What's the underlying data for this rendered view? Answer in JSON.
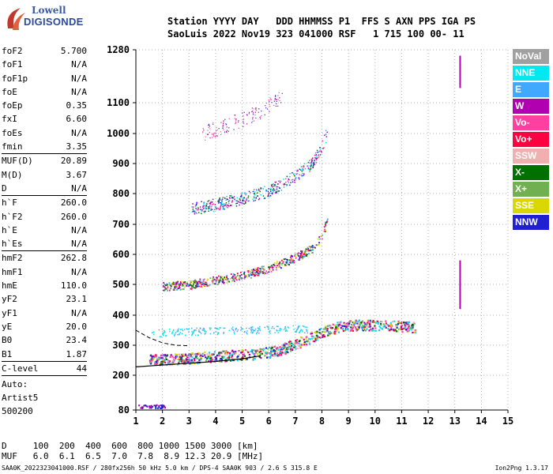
{
  "logo": {
    "line1": "Lowell",
    "line2": "DIGISONDE"
  },
  "header": {
    "line1": "Station YYYY DAY   DDD HHMMSS P1  FFS S AXN PPS IGA PS",
    "line2": "SaoLuis 2022 Nov19 323 041000 RSF   1 715 100 00- 11"
  },
  "params": [
    {
      "label": "foF2",
      "value": "5.700"
    },
    {
      "label": "foF1",
      "value": "N/A"
    },
    {
      "label": "foF1p",
      "value": "N/A"
    },
    {
      "label": "foE",
      "value": "N/A"
    },
    {
      "label": "foEp",
      "value": "0.35"
    },
    {
      "label": "fxI",
      "value": "6.60"
    },
    {
      "label": "foEs",
      "value": "N/A"
    },
    {
      "label": "fmin",
      "value": "3.35",
      "sep": true
    },
    {
      "label": "MUF(D)",
      "value": "20.89"
    },
    {
      "label": "M(D)",
      "value": "3.67"
    },
    {
      "label": "D",
      "value": "N/A",
      "sep": true
    },
    {
      "label": "h`F",
      "value": "260.0"
    },
    {
      "label": "h`F2",
      "value": "260.0"
    },
    {
      "label": "h`E",
      "value": "N/A"
    },
    {
      "label": "h`Es",
      "value": "N/A",
      "sep": true
    },
    {
      "label": "hmF2",
      "value": "262.8"
    },
    {
      "label": "hmF1",
      "value": "N/A"
    },
    {
      "label": "hmE",
      "value": "110.0"
    },
    {
      "label": "yF2",
      "value": "23.1"
    },
    {
      "label": "yF1",
      "value": "N/A"
    },
    {
      "label": "yE",
      "value": "20.0"
    },
    {
      "label": "B0",
      "value": "23.4"
    },
    {
      "label": "B1",
      "value": "1.87",
      "sep": true
    },
    {
      "label": "C-level",
      "value": "44",
      "sep": true
    }
  ],
  "auto": {
    "line1": "Auto:",
    "line2": "Artist5",
    "line3": "500200"
  },
  "dmuf": {
    "d_row": "D     100  200  400  600  800 1000 1500 3000 [km]",
    "muf_row": "MUF   6.0  6.1  6.5  7.0  7.8  8.9 12.3 20.9 [MHz]"
  },
  "footer": "SAA0K_2022323041000.RSF / 280fx256h 50 kHz 5.0 km / DPS-4 SAA0K 903 / 2.6 S 315.8 E",
  "footer_right": "Ion2Png 1.3.17",
  "legend": [
    {
      "label": "NoVal",
      "color": "#a0a0a0"
    },
    {
      "label": "NNE",
      "color": "#00e8f0"
    },
    {
      "label": "E",
      "color": "#40a8ff"
    },
    {
      "label": "W",
      "color": "#b000b0"
    },
    {
      "label": "Vo-",
      "color": "#ff40a0"
    },
    {
      "label": "Vo+",
      "color": "#ff0040"
    },
    {
      "label": "SSW",
      "color": "#f0b0b0"
    },
    {
      "label": "X-",
      "color": "#007000"
    },
    {
      "label": "X+",
      "color": "#70b050"
    },
    {
      "label": "SSE",
      "color": "#d8d800"
    },
    {
      "label": "NNW",
      "color": "#2020d0"
    }
  ],
  "chart_data": {
    "type": "scatter",
    "xlabel": "",
    "ylabel": "",
    "xlim": [
      1,
      15
    ],
    "ylim": [
      80,
      1280
    ],
    "x_ticks": [
      1,
      2,
      3,
      4,
      5,
      6,
      7,
      8,
      9,
      10,
      11,
      12,
      13,
      14,
      15
    ],
    "y_ticks": [
      80,
      200,
      300,
      400,
      500,
      600,
      700,
      800,
      900,
      1000,
      1100,
      1280
    ],
    "grid": true,
    "traces": [
      {
        "name": "F2 O-trace",
        "points": [
          [
            1.5,
            252
          ],
          [
            2.5,
            256
          ],
          [
            3.5,
            262
          ],
          [
            4.5,
            268
          ],
          [
            5.5,
            272
          ],
          [
            6.0,
            278
          ],
          [
            6.5,
            288
          ],
          [
            7.0,
            305
          ],
          [
            7.5,
            325
          ],
          [
            8.0,
            345
          ],
          [
            8.5,
            360
          ],
          [
            9.0,
            368
          ],
          [
            10.0,
            368
          ],
          [
            11.0,
            365
          ],
          [
            11.5,
            362
          ]
        ]
      },
      {
        "name": "2nd hop",
        "points": [
          [
            2,
            495
          ],
          [
            3,
            500
          ],
          [
            4,
            515
          ],
          [
            5,
            530
          ],
          [
            6,
            555
          ],
          [
            7,
            590
          ],
          [
            7.6,
            620
          ],
          [
            8.0,
            660
          ],
          [
            8.2,
            720
          ]
        ]
      },
      {
        "name": "3rd hop",
        "points": [
          [
            3,
            750
          ],
          [
            4,
            765
          ],
          [
            5,
            785
          ],
          [
            6,
            810
          ],
          [
            7,
            860
          ],
          [
            7.6,
            900
          ],
          [
            8.0,
            960
          ],
          [
            8.2,
            1010
          ]
        ]
      },
      {
        "name": "4th hop",
        "points": [
          [
            3.5,
            1000
          ],
          [
            4.5,
            1030
          ],
          [
            5.5,
            1065
          ],
          [
            6.5,
            1120
          ]
        ]
      },
      {
        "name": "Es",
        "points": [
          [
            1.5,
            340
          ],
          [
            2.5,
            345
          ],
          [
            3.5,
            348
          ],
          [
            4.5,
            350
          ],
          [
            5.5,
            352
          ],
          [
            6.5,
            355
          ],
          [
            7.5,
            355
          ]
        ]
      }
    ],
    "model_profile": [
      [
        1.0,
        228
      ],
      [
        2.0,
        234
      ],
      [
        3.0,
        240
      ],
      [
        4.0,
        246
      ],
      [
        5.0,
        255
      ],
      [
        5.7,
        265
      ]
    ],
    "model_dashed": [
      [
        1.0,
        350
      ],
      [
        1.5,
        325
      ],
      [
        2.0,
        308
      ],
      [
        2.5,
        300
      ],
      [
        3.0,
        298
      ]
    ]
  }
}
